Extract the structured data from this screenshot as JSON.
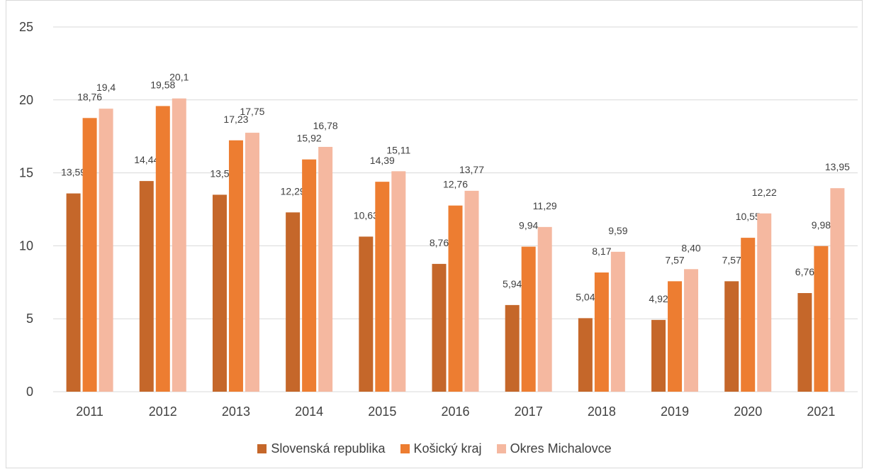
{
  "chart_data": {
    "type": "bar",
    "categories": [
      "2011",
      "2012",
      "2013",
      "2014",
      "2015",
      "2016",
      "2017",
      "2018",
      "2019",
      "2020",
      "2021"
    ],
    "series": [
      {
        "name": "Slovenská republika",
        "color": "#c5672a",
        "values": [
          13.59,
          14.44,
          13.5,
          12.29,
          10.63,
          8.76,
          5.94,
          5.04,
          4.92,
          7.57,
          6.76
        ],
        "labels": [
          "13,59",
          "14,44",
          "13,5",
          "12,29",
          "10,63",
          "8,76",
          "5,94",
          "5,04",
          "4,92",
          "7,57",
          "6,76"
        ]
      },
      {
        "name": "Košický kraj",
        "color": "#ed7d31",
        "values": [
          18.76,
          19.58,
          17.23,
          15.92,
          14.39,
          12.76,
          9.94,
          8.17,
          7.57,
          10.55,
          9.98
        ],
        "labels": [
          "18,76",
          "19,58",
          "17,23",
          "15,92",
          "14,39",
          "12,76",
          "9,94",
          "8,17",
          "7,57",
          "10,55",
          "9,98"
        ]
      },
      {
        "name": "Okres Michalovce",
        "color": "#f5b8a0",
        "values": [
          19.4,
          20.1,
          17.75,
          16.78,
          15.11,
          13.77,
          11.29,
          9.59,
          8.4,
          12.22,
          13.95
        ],
        "labels": [
          "19,4",
          "20,1",
          "17,75",
          "16,78",
          "15,11",
          "13,77",
          "11,29",
          "9,59",
          "8,40",
          "12,22",
          "13,95"
        ]
      }
    ],
    "yticks": [
      "0",
      "5",
      "10",
      "15",
      "20",
      "25"
    ],
    "ylim": [
      0,
      25
    ],
    "grid": true,
    "legend_position": "bottom"
  }
}
